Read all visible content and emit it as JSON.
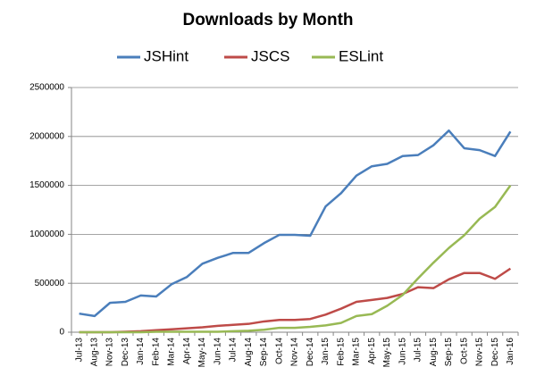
{
  "chart_data": {
    "type": "line",
    "title": "Downloads by Month",
    "categories": [
      "Jul-13",
      "Aug-13",
      "Nov-13",
      "Dec-13",
      "Jan-14",
      "Feb-14",
      "Mar-14",
      "Apr-14",
      "May-14",
      "Jun-14",
      "Jul-14",
      "Aug-14",
      "Sep-14",
      "Oct-14",
      "Nov-14",
      "Dec-14",
      "Jan-15",
      "Feb-15",
      "Mar-15",
      "Apr-15",
      "May-15",
      "Jun-15",
      "Jul-15",
      "Aug-15",
      "Sep-15",
      "Oct-15",
      "Nov-15",
      "Dec-15",
      "Jan-16"
    ],
    "series": [
      {
        "name": "JSHint",
        "color": "#4a7ebb",
        "values": [
          190000,
          165000,
          300000,
          310000,
          375000,
          365000,
          490000,
          565000,
          700000,
          760000,
          810000,
          810000,
          910000,
          995000,
          995000,
          985000,
          1285000,
          1420000,
          1600000,
          1695000,
          1720000,
          1800000,
          1810000,
          1910000,
          2060000,
          1880000,
          1860000,
          1800000,
          2050000
        ]
      },
      {
        "name": "JSCS",
        "color": "#be4b48",
        "values": [
          0,
          0,
          0,
          5000,
          10000,
          20000,
          30000,
          40000,
          50000,
          65000,
          75000,
          85000,
          110000,
          125000,
          125000,
          135000,
          180000,
          240000,
          310000,
          330000,
          350000,
          390000,
          460000,
          450000,
          540000,
          605000,
          605000,
          545000,
          650000
        ]
      },
      {
        "name": "ESLint",
        "color": "#98b954",
        "values": [
          0,
          0,
          0,
          0,
          0,
          5000,
          5000,
          5000,
          5000,
          5000,
          10000,
          15000,
          25000,
          45000,
          45000,
          55000,
          70000,
          95000,
          165000,
          185000,
          270000,
          380000,
          550000,
          710000,
          860000,
          990000,
          1160000,
          1280000,
          1500000
        ]
      }
    ],
    "ylim": [
      0,
      2500000
    ],
    "yticks": [
      0,
      500000,
      1000000,
      1500000,
      2000000,
      2500000
    ],
    "grid": true,
    "legend": "top"
  }
}
